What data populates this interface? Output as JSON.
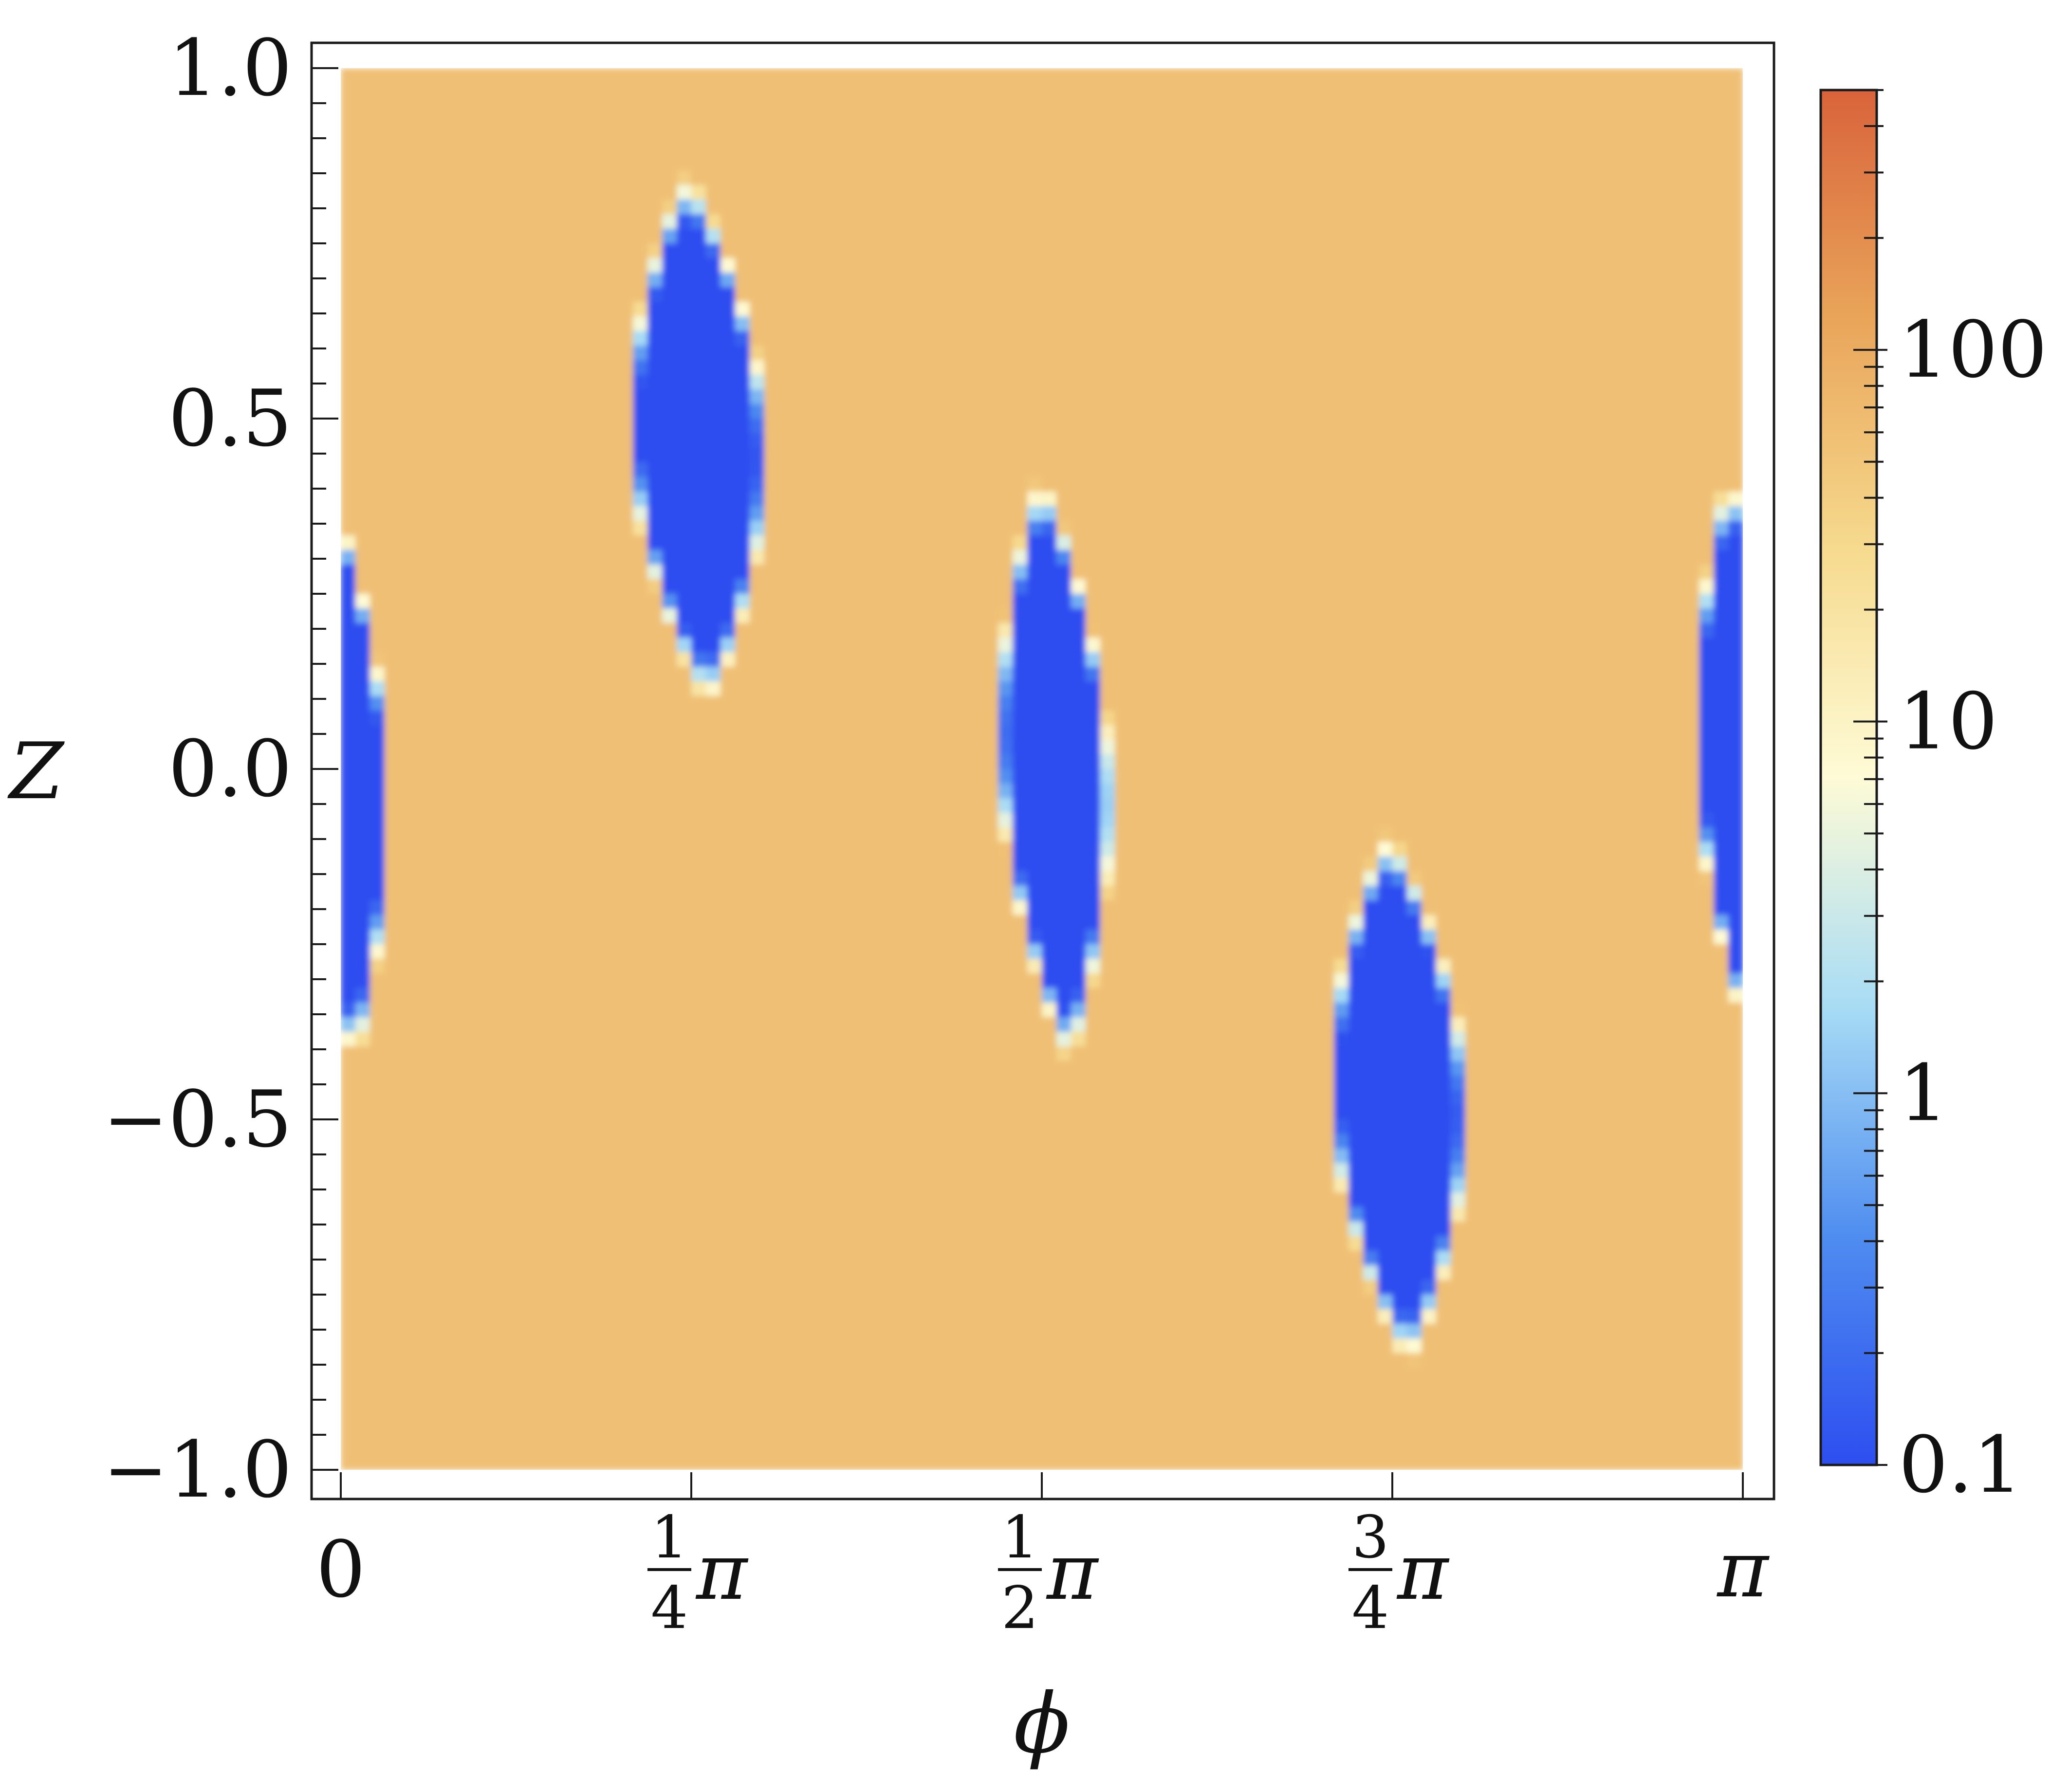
{
  "chart_data": {
    "type": "heatmap",
    "title": "",
    "xlabel": "ϕ",
    "ylabel": "Z",
    "xlim": [
      0,
      3.14159
    ],
    "ylim": [
      -1.0,
      1.0
    ],
    "x_ticks": [
      {
        "value": 0,
        "label": "0",
        "num": "",
        "den": "",
        "sym": ""
      },
      {
        "value": 0.7854,
        "label": "1/4 π",
        "num": "1",
        "den": "4",
        "sym": "π"
      },
      {
        "value": 1.5708,
        "label": "1/2 π",
        "num": "1",
        "den": "2",
        "sym": "π"
      },
      {
        "value": 2.3562,
        "label": "3/4 π",
        "num": "3",
        "den": "4",
        "sym": "π"
      },
      {
        "value": 3.14159,
        "label": "π",
        "num": "",
        "den": "",
        "sym": "π"
      }
    ],
    "y_ticks": [
      {
        "value": 1.0,
        "label": "1.0"
      },
      {
        "value": 0.5,
        "label": "0.5"
      },
      {
        "value": 0.0,
        "label": "0.0"
      },
      {
        "value": -0.5,
        "label": "−0.5"
      },
      {
        "value": -1.0,
        "label": "−1.0"
      }
    ],
    "colorbar": {
      "scale": "log",
      "range": [
        0.1,
        500
      ],
      "ticks": [
        {
          "value": 0.1,
          "label": "0.1"
        },
        {
          "value": 1,
          "label": "1"
        },
        {
          "value": 10,
          "label": "10"
        },
        {
          "value": 100,
          "label": "100"
        }
      ],
      "colors": [
        "#2d4ef0",
        "#4f8df0",
        "#a8dcf5",
        "#fefbd6",
        "#f6da8e",
        "#e9a55a",
        "#d9633b"
      ]
    },
    "background_level": 60,
    "regions": [
      {
        "label": "low-region",
        "phi": 0.8,
        "z": 0.47,
        "phi_halfwidth": 0.16,
        "z_halfheight": 0.38,
        "skew": 0.18,
        "value": 0.1,
        "rim": true
      },
      {
        "label": "low-region",
        "phi": 1.6,
        "z": 0.0,
        "phi_halfwidth": 0.13,
        "z_halfheight": 0.42,
        "skew": 0.22,
        "value": 0.1,
        "rim": false
      },
      {
        "label": "low-region",
        "phi": 2.37,
        "z": -0.47,
        "phi_halfwidth": 0.16,
        "z_halfheight": 0.38,
        "skew": 0.18,
        "value": 0.1,
        "rim": true
      },
      {
        "label": "low-region",
        "phi": 0.0,
        "z": 0.0,
        "phi_halfwidth": 0.11,
        "z_halfheight": 0.42,
        "skew": 0.22,
        "value": 0.1,
        "rim": false
      },
      {
        "label": "low-region",
        "phi": 3.14159,
        "z": 0.0,
        "phi_halfwidth": 0.11,
        "z_halfheight": 0.42,
        "skew": 0.22,
        "value": 0.1,
        "rim": false
      }
    ]
  }
}
